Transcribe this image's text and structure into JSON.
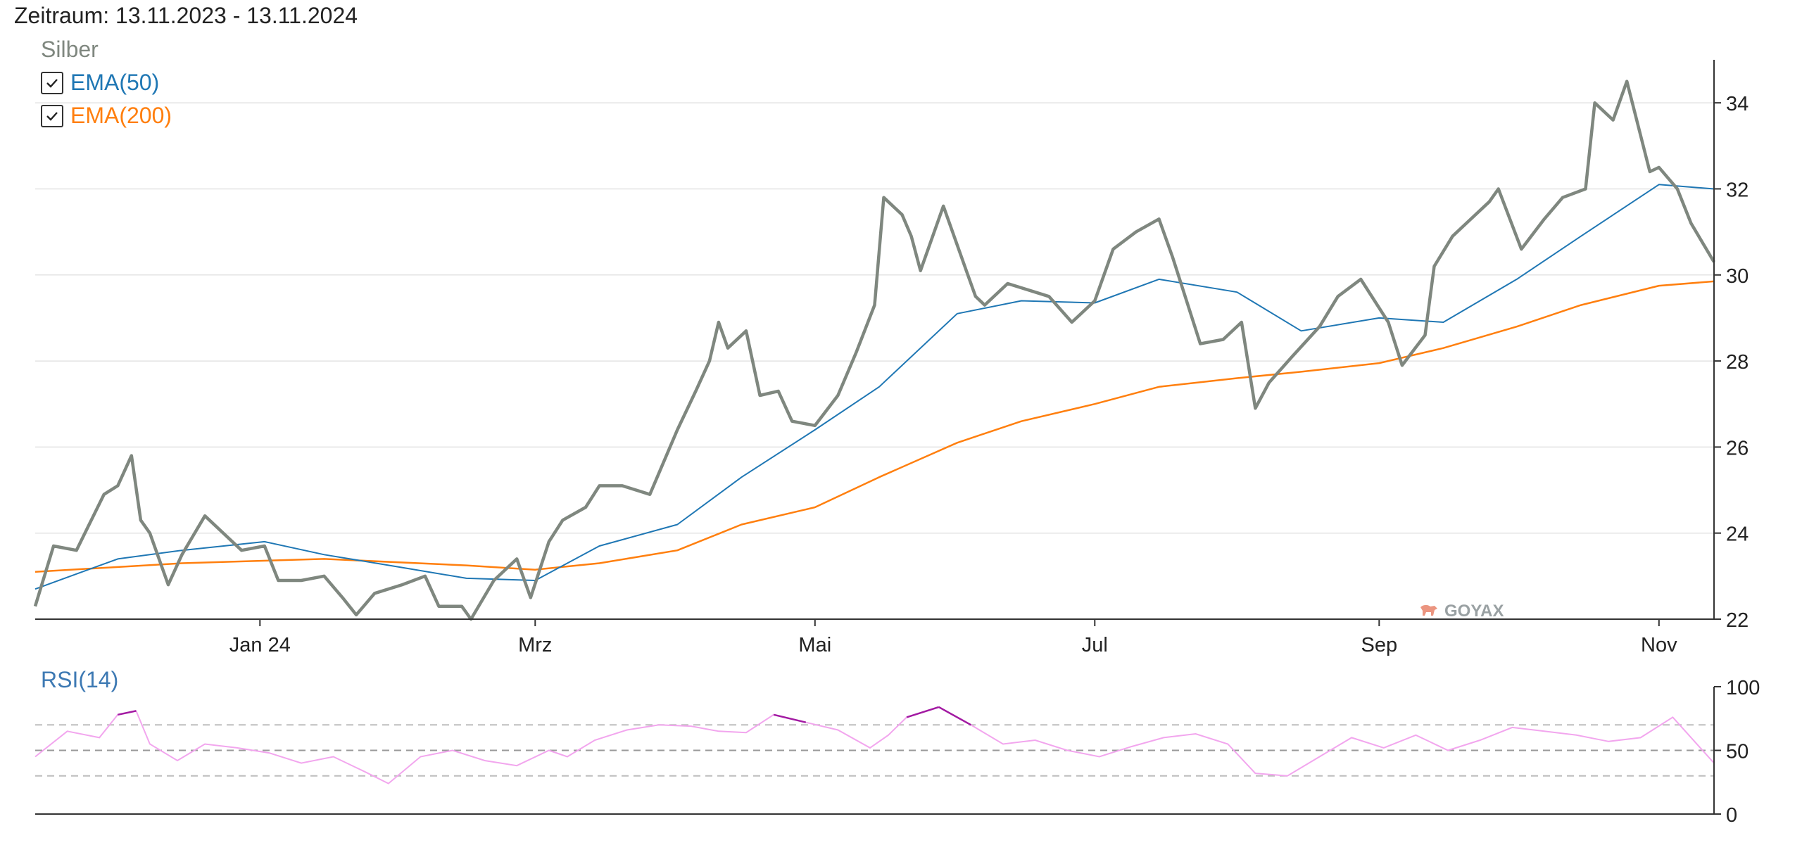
{
  "header": {
    "period": "Zeitraum: 13.11.2023 - 13.11.2024",
    "series_name": "Silber"
  },
  "legend": [
    {
      "label": "EMA(50)",
      "checked": true,
      "color": "#1f77b4"
    },
    {
      "label": "EMA(200)",
      "checked": true,
      "color": "#ff7f0e"
    }
  ],
  "watermark": "GOYAX",
  "colors": {
    "price": "#7f877f",
    "ema50": "#1f77b4",
    "ema200": "#ff7f0e",
    "rsi": "#f2a6ee",
    "rsi_extreme": "#a21aa2",
    "watermark": "#e8836a"
  },
  "chart_data": [
    {
      "type": "line",
      "title": "Silber",
      "x_tick_labels": [
        "Jan 24",
        "Mrz",
        "Mai",
        "Jul",
        "Sep",
        "Nov"
      ],
      "x_tick_dates": [
        "2024-01-01",
        "2024-03-01",
        "2024-05-01",
        "2024-07-01",
        "2024-09-01",
        "2024-11-01"
      ],
      "xlim": [
        "2023-11-13",
        "2024-11-13"
      ],
      "ylim": [
        22,
        35
      ],
      "y_ticks": [
        22,
        24,
        26,
        28,
        30,
        32,
        34
      ],
      "y_axis_position": "right",
      "grid": true,
      "series": [
        {
          "name": "Silber",
          "x": [
            "2023-11-13",
            "2023-11-17",
            "2023-11-22",
            "2023-11-28",
            "2023-12-01",
            "2023-12-04",
            "2023-12-06",
            "2023-12-08",
            "2023-12-12",
            "2023-12-15",
            "2023-12-20",
            "2023-12-28",
            "2024-01-02",
            "2024-01-05",
            "2024-01-10",
            "2024-01-15",
            "2024-01-19",
            "2024-01-22",
            "2024-01-26",
            "2024-02-01",
            "2024-02-06",
            "2024-02-09",
            "2024-02-14",
            "2024-02-16",
            "2024-02-21",
            "2024-02-26",
            "2024-02-29",
            "2024-03-04",
            "2024-03-07",
            "2024-03-12",
            "2024-03-15",
            "2024-03-20",
            "2024-03-26",
            "2024-04-01",
            "2024-04-05",
            "2024-04-08",
            "2024-04-10",
            "2024-04-12",
            "2024-04-16",
            "2024-04-19",
            "2024-04-23",
            "2024-04-26",
            "2024-05-01",
            "2024-05-06",
            "2024-05-10",
            "2024-05-14",
            "2024-05-16",
            "2024-05-20",
            "2024-05-22",
            "2024-05-24",
            "2024-05-29",
            "2024-06-03",
            "2024-06-05",
            "2024-06-07",
            "2024-06-12",
            "2024-06-18",
            "2024-06-21",
            "2024-06-26",
            "2024-07-01",
            "2024-07-05",
            "2024-07-10",
            "2024-07-15",
            "2024-07-18",
            "2024-07-24",
            "2024-07-29",
            "2024-08-02",
            "2024-08-05",
            "2024-08-08",
            "2024-08-13",
            "2024-08-19",
            "2024-08-23",
            "2024-08-28",
            "2024-09-03",
            "2024-09-06",
            "2024-09-11",
            "2024-09-13",
            "2024-09-17",
            "2024-09-20",
            "2024-09-25",
            "2024-09-27",
            "2024-10-02",
            "2024-10-07",
            "2024-10-11",
            "2024-10-16",
            "2024-10-18",
            "2024-10-22",
            "2024-10-25",
            "2024-10-30",
            "2024-11-01",
            "2024-11-05",
            "2024-11-08",
            "2024-11-13"
          ],
          "values": [
            22.3,
            23.7,
            23.6,
            24.9,
            25.1,
            25.8,
            24.3,
            24.0,
            22.8,
            23.5,
            24.4,
            23.6,
            23.7,
            22.9,
            22.9,
            23.0,
            22.5,
            22.1,
            22.6,
            22.8,
            23.0,
            22.3,
            22.3,
            22.0,
            22.9,
            23.4,
            22.5,
            23.8,
            24.3,
            24.6,
            25.1,
            25.1,
            24.9,
            26.4,
            27.3,
            28.0,
            28.9,
            28.3,
            28.7,
            27.2,
            27.3,
            26.6,
            26.5,
            27.2,
            28.2,
            29.3,
            31.8,
            31.4,
            30.9,
            30.1,
            31.6,
            30.1,
            29.5,
            29.3,
            29.8,
            29.6,
            29.5,
            28.9,
            29.4,
            30.6,
            31.0,
            31.3,
            30.4,
            28.4,
            28.5,
            28.9,
            26.9,
            27.5,
            28.1,
            28.8,
            29.5,
            29.9,
            28.9,
            27.9,
            28.6,
            30.2,
            30.9,
            31.2,
            31.7,
            32.0,
            30.6,
            31.3,
            31.8,
            32.0,
            34.0,
            33.6,
            34.5,
            32.4,
            32.5,
            32.0,
            31.2,
            30.3
          ]
        },
        {
          "name": "EMA(50)",
          "x": [
            "2023-11-13",
            "2023-12-01",
            "2023-12-15",
            "2024-01-02",
            "2024-01-15",
            "2024-02-01",
            "2024-02-15",
            "2024-03-01",
            "2024-03-15",
            "2024-04-01",
            "2024-04-15",
            "2024-05-01",
            "2024-05-15",
            "2024-06-01",
            "2024-06-15",
            "2024-07-01",
            "2024-07-15",
            "2024-08-01",
            "2024-08-15",
            "2024-09-01",
            "2024-09-15",
            "2024-10-01",
            "2024-10-15",
            "2024-11-01",
            "2024-11-13"
          ],
          "values": [
            22.7,
            23.4,
            23.6,
            23.8,
            23.5,
            23.2,
            22.95,
            22.9,
            23.7,
            24.2,
            25.3,
            26.4,
            27.4,
            29.1,
            29.4,
            29.35,
            29.9,
            29.6,
            28.7,
            29.0,
            28.9,
            29.9,
            30.9,
            32.1,
            32.0
          ]
        },
        {
          "name": "EMA(200)",
          "x": [
            "2023-11-13",
            "2023-12-15",
            "2024-01-15",
            "2024-02-15",
            "2024-03-01",
            "2024-03-15",
            "2024-04-01",
            "2024-04-15",
            "2024-05-01",
            "2024-05-15",
            "2024-06-01",
            "2024-06-15",
            "2024-07-01",
            "2024-07-15",
            "2024-08-01",
            "2024-08-15",
            "2024-09-01",
            "2024-09-15",
            "2024-10-01",
            "2024-10-15",
            "2024-11-01",
            "2024-11-13"
          ],
          "values": [
            23.1,
            23.3,
            23.4,
            23.25,
            23.15,
            23.3,
            23.6,
            24.2,
            24.6,
            25.3,
            26.1,
            26.6,
            27.0,
            27.4,
            27.6,
            27.75,
            27.95,
            28.3,
            28.8,
            29.3,
            29.75,
            29.85
          ]
        }
      ]
    },
    {
      "type": "line",
      "title": "RSI(14)",
      "xlim": [
        "2023-11-13",
        "2024-11-13"
      ],
      "ylim": [
        0,
        100
      ],
      "y_ticks": [
        0,
        50,
        100
      ],
      "y_axis_position": "right",
      "reference_lines": [
        30,
        50,
        70
      ],
      "series": [
        {
          "name": "RSI(14)",
          "x": [
            "2023-11-13",
            "2023-11-20",
            "2023-11-27",
            "2023-12-01",
            "2023-12-05",
            "2023-12-08",
            "2023-12-14",
            "2023-12-20",
            "2023-12-27",
            "2024-01-03",
            "2024-01-10",
            "2024-01-17",
            "2024-01-24",
            "2024-01-29",
            "2024-02-05",
            "2024-02-12",
            "2024-02-19",
            "2024-02-26",
            "2024-03-04",
            "2024-03-08",
            "2024-03-14",
            "2024-03-21",
            "2024-03-28",
            "2024-04-04",
            "2024-04-10",
            "2024-04-16",
            "2024-04-22",
            "2024-04-29",
            "2024-05-06",
            "2024-05-13",
            "2024-05-17",
            "2024-05-21",
            "2024-05-28",
            "2024-06-04",
            "2024-06-11",
            "2024-06-18",
            "2024-06-25",
            "2024-07-02",
            "2024-07-09",
            "2024-07-16",
            "2024-07-23",
            "2024-07-30",
            "2024-08-05",
            "2024-08-12",
            "2024-08-19",
            "2024-08-26",
            "2024-09-02",
            "2024-09-09",
            "2024-09-16",
            "2024-09-23",
            "2024-09-30",
            "2024-10-07",
            "2024-10-14",
            "2024-10-21",
            "2024-10-28",
            "2024-11-04",
            "2024-11-13"
          ],
          "values": [
            45,
            65,
            60,
            78,
            81,
            55,
            42,
            55,
            52,
            48,
            40,
            45,
            33,
            24,
            45,
            50,
            42,
            38,
            50,
            45,
            58,
            66,
            70,
            69,
            65,
            64,
            78,
            72,
            66,
            52,
            62,
            76,
            84,
            70,
            55,
            58,
            50,
            45,
            53,
            60,
            63,
            55,
            32,
            30,
            45,
            60,
            52,
            62,
            50,
            58,
            68,
            65,
            62,
            57,
            60,
            76,
            40
          ]
        }
      ]
    }
  ]
}
